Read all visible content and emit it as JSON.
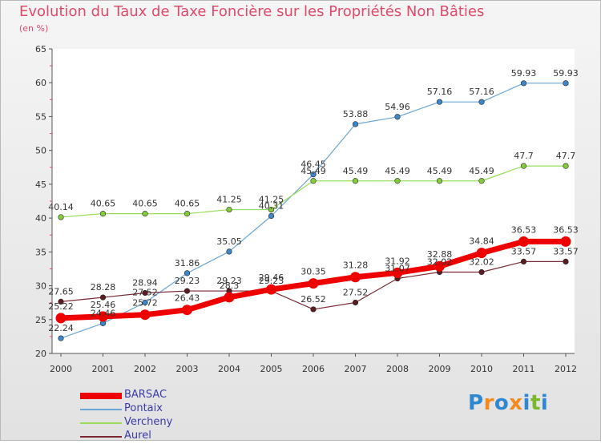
{
  "chart_data": {
    "type": "line",
    "title": "Evolution du Taux de Taxe Foncière sur les Propriétés Non Bâties",
    "subtitle": "(en %)",
    "categories": [
      "2000",
      "2001",
      "2002",
      "2003",
      "2004",
      "2005",
      "2006",
      "2007",
      "2008",
      "2009",
      "2010",
      "2011",
      "2012"
    ],
    "ylim": [
      20,
      65
    ],
    "yticks": [
      20,
      25,
      30,
      35,
      40,
      45,
      50,
      55,
      60,
      65
    ],
    "grid": false,
    "legend_position": "bottom-left",
    "series": [
      {
        "name": "Pontaix",
        "color": "#6aa6d6",
        "marker": "#3b87c9",
        "width": 1.2,
        "values": [
          22.24,
          24.46,
          27.52,
          31.86,
          35.05,
          40.31,
          46.45,
          53.88,
          54.96,
          57.16,
          57.16,
          59.93,
          59.93
        ],
        "labels": [
          "22.24",
          "24.46",
          "27.52",
          "31.86",
          "35.05",
          "40.31",
          "46.45",
          "53.88",
          "54.96",
          "57.16",
          "57.16",
          "59.93",
          "59.93"
        ]
      },
      {
        "name": "Vercheny",
        "color": "#98dd5a",
        "marker": "#84cc3a",
        "width": 1.2,
        "values": [
          40.14,
          40.65,
          40.65,
          40.65,
          41.25,
          41.25,
          45.49,
          45.49,
          45.49,
          45.49,
          45.49,
          47.7,
          47.7
        ],
        "labels": [
          "40.14",
          "40.65",
          "40.65",
          "40.65",
          "41.25",
          "41.25",
          "45.49",
          "45.49",
          "45.49",
          "45.49",
          "45.49",
          "47.7",
          "47.7"
        ]
      },
      {
        "name": "Aurel",
        "color": "#7b2a35",
        "marker": "#5a1c20",
        "width": 1.2,
        "values": [
          27.65,
          28.28,
          28.94,
          29.23,
          29.23,
          29.23,
          26.52,
          27.52,
          31.07,
          32.02,
          32.02,
          33.57,
          33.57
        ],
        "labels": [
          "27.65",
          "28.28",
          "28.94",
          "29.23",
          "29.23",
          "29.23",
          "26.52",
          "27.52",
          "31.07",
          "32.02",
          "32.02",
          "33.57",
          "33.57"
        ]
      },
      {
        "name": "BARSAC",
        "color": "#ee0000",
        "marker": "#ee0000",
        "width": 7,
        "values": [
          25.22,
          25.46,
          25.72,
          26.43,
          28.3,
          29.46,
          30.35,
          31.28,
          31.92,
          32.88,
          34.84,
          36.53,
          36.53
        ],
        "labels": [
          "25.22",
          "25.46",
          "25.72",
          "26.43",
          "28.3",
          "29.46",
          "30.35",
          "31.28",
          "31.92",
          "32.88",
          "34.84",
          "36.53",
          "36.53"
        ]
      }
    ]
  },
  "legend": [
    {
      "name": "BARSAC",
      "color": "#ee0000"
    },
    {
      "name": "Pontaix",
      "color": "#6aa6d6"
    },
    {
      "name": "Vercheny",
      "color": "#98dd5a"
    },
    {
      "name": "Aurel",
      "color": "#7b2a35"
    }
  ],
  "logo": {
    "letters": [
      "P",
      "r",
      "o",
      "x",
      "i",
      "t",
      "i"
    ],
    "colors": [
      "#2f86d1",
      "#f28a1e",
      "#2f86d1",
      "#f28a1e",
      "#2f86d1",
      "#7ab829",
      "#2f86d1"
    ]
  }
}
